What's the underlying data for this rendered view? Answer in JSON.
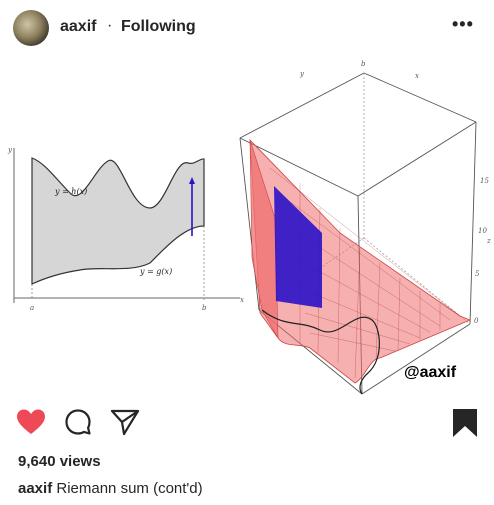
{
  "post": {
    "username": "aaxif",
    "separator": "·",
    "follow_status": "Following",
    "more_icon": "•••",
    "views": "9,640 views",
    "caption_user": "aaxif",
    "caption_text": "Riemann sum (cont'd)"
  },
  "media": {
    "graph2d": {
      "label_h": "y = h(x)",
      "label_g": "y = g(x)",
      "axis_y": "y",
      "axis_x": "x",
      "tick_a": "a",
      "tick_b": "b"
    },
    "graph3d": {
      "axis_y": "y",
      "axis_b": "b",
      "axis_x": "x",
      "tick_15": "15",
      "tick_10": "10",
      "tick_5": "5",
      "tick_0": "0",
      "axis_z": "z"
    },
    "watermark": "@aaxif"
  },
  "colors": {
    "like": "#ed4956",
    "text": "#262626",
    "solid_blue": "#2a12c8",
    "surface_red": "#f06f6f"
  }
}
